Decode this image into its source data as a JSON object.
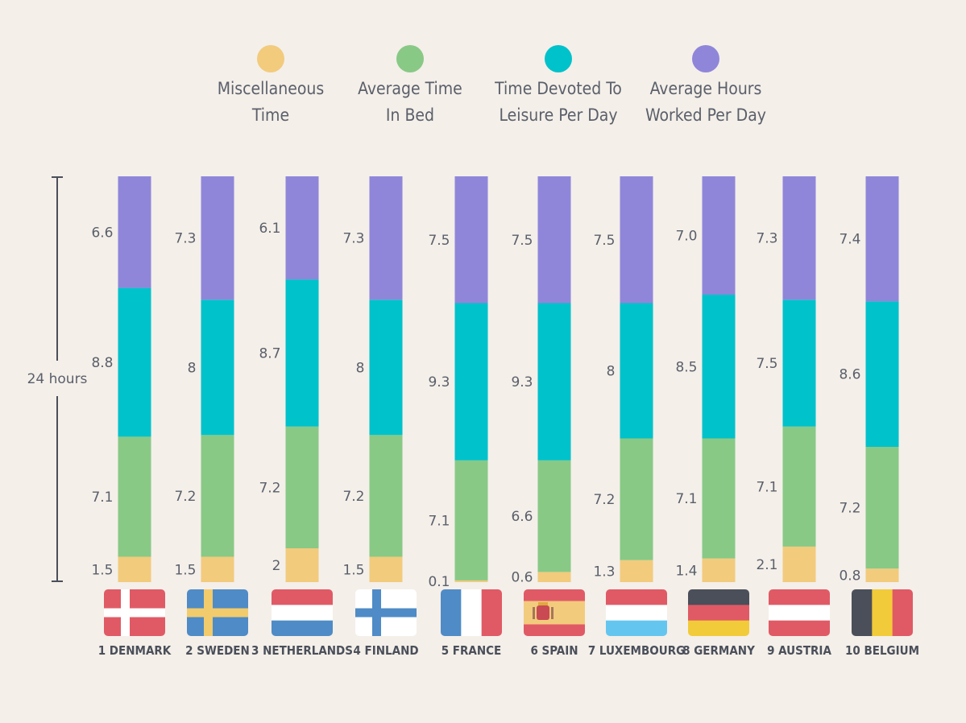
{
  "chart_data": {
    "type": "bar",
    "stacked": true,
    "orientation": "vertical",
    "axis_label": "24 hours",
    "legend_position": "top",
    "series": [
      {
        "name": "Miscellaneous Time",
        "color": "#f2cb7d",
        "values": [
          1.5,
          1.5,
          2,
          1.5,
          0.1,
          0.6,
          1.3,
          1.4,
          2.1,
          0.8
        ],
        "labels": [
          "1.5",
          "1.5",
          "2",
          "1.5",
          "0.1",
          "0.6",
          "1.3",
          "1.4",
          "2.1",
          "0.8"
        ]
      },
      {
        "name": "Average Time In Bed",
        "color": "#88c986",
        "values": [
          7.1,
          7.2,
          7.2,
          7.2,
          7.1,
          6.6,
          7.2,
          7.1,
          7.1,
          7.2
        ],
        "labels": [
          "7.1",
          "7.2",
          "7.2",
          "7.2",
          "7.1",
          "6.6",
          "7.2",
          "7.1",
          "7.1",
          "7.2"
        ]
      },
      {
        "name": "Time Devoted To Leisure Per Day",
        "color": "#00c2cb",
        "values": [
          8.8,
          8,
          8.7,
          8,
          9.3,
          9.3,
          8,
          8.5,
          7.5,
          8.6
        ],
        "labels": [
          "8.8",
          "8",
          "8.7",
          "8",
          "9.3",
          "9.3",
          "8",
          "8.5",
          "7.5",
          "8.6"
        ]
      },
      {
        "name": "Average Hours Worked Per Day",
        "color": "#8f86da",
        "values": [
          6.6,
          7.3,
          6.1,
          7.3,
          7.5,
          7.5,
          7.5,
          7.0,
          7.3,
          7.4
        ],
        "labels": [
          "6.6",
          "7.3",
          "6.1",
          "7.3",
          "7.5",
          "7.5",
          "7.5",
          "7.0",
          "7.3",
          "7.4"
        ]
      }
    ],
    "categories": [
      "1 DENMARK",
      "2 SWEDEN",
      "3 NETHERLANDS",
      "4 FINLAND",
      "5 FRANCE",
      "6 SPAIN",
      "7 LUXEMBOURG",
      "8 GERMANY",
      "9 AUSTRIA",
      "10 BELGIUM"
    ],
    "legend_lines": [
      [
        "Miscellaneous",
        "Time"
      ],
      [
        "Average Time",
        "In Bed"
      ],
      [
        "Time Devoted To",
        "Leisure Per Day"
      ],
      [
        "Average Hours",
        "Worked Per Day"
      ]
    ],
    "flags": [
      {
        "type": "nordic",
        "icon": "denmark-flag-icon",
        "bg": "#e05a66",
        "cross": "#ffffff"
      },
      {
        "type": "nordic",
        "icon": "sweden-flag-icon",
        "bg": "#4f8bc6",
        "cross": "#f2cb6c"
      },
      {
        "type": "hstripes",
        "icon": "netherlands-flag-icon",
        "colors": [
          "#e05a66",
          "#ffffff",
          "#4f8bc6"
        ]
      },
      {
        "type": "nordic",
        "icon": "finland-flag-icon",
        "bg": "#ffffff",
        "cross": "#4f8bc6"
      },
      {
        "type": "vstripes",
        "icon": "france-flag-icon",
        "colors": [
          "#4f8bc6",
          "#ffffff",
          "#e05a66"
        ]
      },
      {
        "type": "spain",
        "icon": "spain-flag-icon",
        "colors": [
          "#e05a66",
          "#f2cb7d",
          "#e05a66"
        ]
      },
      {
        "type": "hstripes",
        "icon": "luxembourg-flag-icon",
        "colors": [
          "#e05a66",
          "#ffffff",
          "#64c6ef"
        ]
      },
      {
        "type": "hstripes",
        "icon": "germany-flag-icon",
        "colors": [
          "#4a4f5a",
          "#e05a66",
          "#f2cb3a"
        ]
      },
      {
        "type": "hstripes",
        "icon": "austria-flag-icon",
        "colors": [
          "#e05a66",
          "#ffffff",
          "#e05a66"
        ]
      },
      {
        "type": "vstripes",
        "icon": "belgium-flag-icon",
        "colors": [
          "#4a4f5a",
          "#f2cb3a",
          "#e05a66"
        ]
      }
    ]
  }
}
